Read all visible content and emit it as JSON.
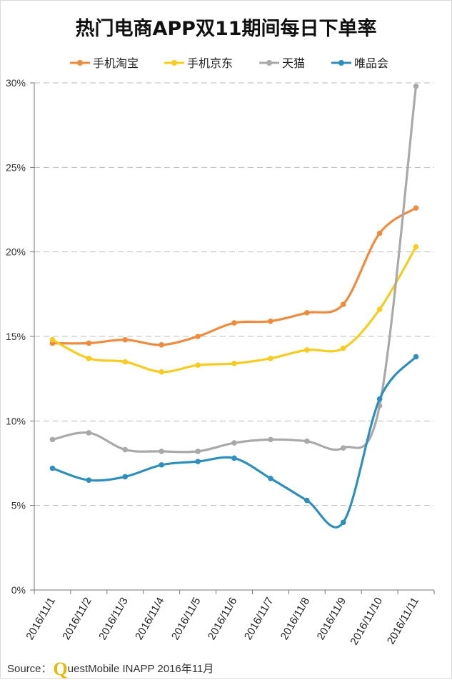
{
  "chart_data": {
    "type": "line",
    "title": "热门电商APP双11期间每日下单率",
    "categories": [
      "2016/11/1",
      "2016/11/2",
      "2016/11/3",
      "2016/11/4",
      "2016/11/5",
      "2016/11/6",
      "2016/11/7",
      "2016/11/8",
      "2016/11/9",
      "2016/11/10",
      "2016/11/11"
    ],
    "series": [
      {
        "name": "手机淘宝",
        "color": "#f08a3c",
        "values": [
          14.6,
          14.6,
          14.8,
          14.5,
          15.0,
          15.8,
          15.9,
          16.4,
          16.9,
          21.1,
          22.6
        ]
      },
      {
        "name": "手机京东",
        "color": "#f7cc1e",
        "values": [
          14.8,
          13.7,
          13.5,
          12.9,
          13.3,
          13.4,
          13.7,
          14.2,
          14.3,
          16.6,
          20.3
        ]
      },
      {
        "name": "天猫",
        "color": "#a9a9a9",
        "values": [
          8.9,
          9.3,
          8.3,
          8.2,
          8.2,
          8.7,
          8.9,
          8.8,
          8.4,
          10.9,
          29.8
        ]
      },
      {
        "name": "唯品会",
        "color": "#2e8fbd",
        "values": [
          7.2,
          6.5,
          6.7,
          7.4,
          7.6,
          7.8,
          6.6,
          5.3,
          4.0,
          11.3,
          13.8
        ]
      }
    ],
    "y_ticks": [
      "0%",
      "5%",
      "10%",
      "15%",
      "20%",
      "25%",
      "30%"
    ],
    "ylim": [
      0,
      30
    ],
    "y_unit": "%",
    "legend_position": "top",
    "grid": "horizontal"
  },
  "source": {
    "prefix": "Source：",
    "logo_letter": "Q",
    "text": "uestMobile INAPP 2016年11月"
  }
}
